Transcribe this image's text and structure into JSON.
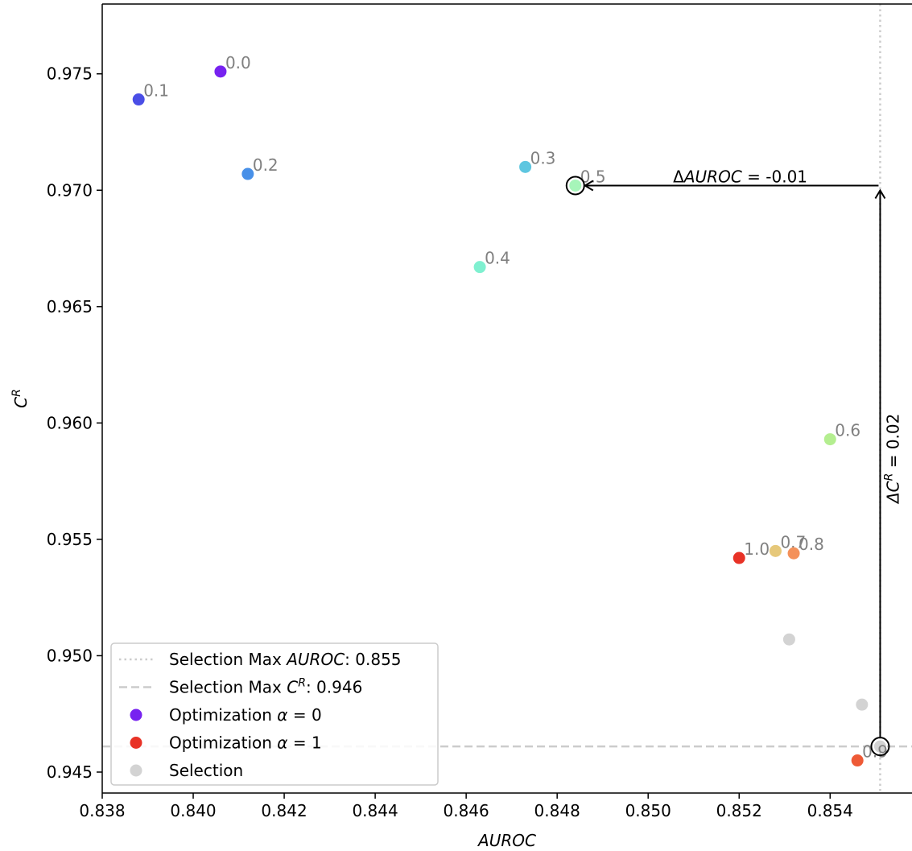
{
  "chart_data": {
    "type": "scatter",
    "xlabel": "AUROC",
    "ylabel_base": "C",
    "ylabel_sup": "R",
    "xlim": [
      0.838,
      0.8558
    ],
    "ylim": [
      0.9441,
      0.978
    ],
    "grid": false,
    "legend_position": "bottom-left",
    "x_ticks": [
      "0.838",
      "0.840",
      "0.842",
      "0.844",
      "0.846",
      "0.848",
      "0.850",
      "0.852",
      "0.854"
    ],
    "y_ticks": [
      "0.945",
      "0.950",
      "0.955",
      "0.960",
      "0.965",
      "0.970",
      "0.975"
    ],
    "optimization_points": [
      {
        "label": "0.0",
        "x": 0.8406,
        "y": 0.9751,
        "color": "#7722f0"
      },
      {
        "label": "0.1",
        "x": 0.8388,
        "y": 0.9739,
        "color": "#4a4ee6"
      },
      {
        "label": "0.2",
        "x": 0.8412,
        "y": 0.9707,
        "color": "#4890e8"
      },
      {
        "label": "0.3",
        "x": 0.8473,
        "y": 0.971,
        "color": "#5ec6e0"
      },
      {
        "label": "0.4",
        "x": 0.8463,
        "y": 0.9667,
        "color": "#7ff0d0"
      },
      {
        "label": "0.5",
        "x": 0.8484,
        "y": 0.9702,
        "color": "#a6f5b9"
      },
      {
        "label": "0.6",
        "x": 0.854,
        "y": 0.9593,
        "color": "#b4ee90"
      },
      {
        "label": "0.7",
        "x": 0.8528,
        "y": 0.9545,
        "color": "#e6c87a"
      },
      {
        "label": "0.8",
        "x": 0.8532,
        "y": 0.9544,
        "color": "#f4915a"
      },
      {
        "label": "0.9",
        "x": 0.8546,
        "y": 0.9455,
        "color": "#ee5a36"
      },
      {
        "label": "1.0",
        "x": 0.852,
        "y": 0.9542,
        "color": "#e83226"
      }
    ],
    "selection_points": [
      {
        "x": 0.8531,
        "y": 0.9507
      },
      {
        "x": 0.8547,
        "y": 0.9479
      },
      {
        "x": 0.8551,
        "y": 0.9461
      }
    ],
    "selection_max_auroc": 0.8551,
    "selection_max_cr": 0.9461,
    "highlighted": [
      {
        "x": 0.8484,
        "y": 0.9702
      },
      {
        "x": 0.8551,
        "y": 0.9461
      }
    ],
    "annotations": {
      "delta_auroc": {
        "prefix": "Δ",
        "var": "AUROC",
        "suffix": " = -0.01"
      },
      "delta_cr": {
        "prefix": "ΔC",
        "sup": "R",
        "suffix": " = 0.02"
      }
    },
    "legend": [
      {
        "marker": "dotted-line",
        "prefix": "Selection Max ",
        "var": "AUROC",
        "sup": "",
        "suffix": ": 0.855"
      },
      {
        "marker": "dashed-line",
        "prefix": "Selection Max ",
        "var": "C",
        "sup": "R",
        "suffix": ": 0.946"
      },
      {
        "marker": "dot",
        "color": "#7722f0",
        "prefix": "Optimization ",
        "var": "α",
        "sup": "",
        "suffix": " = 0"
      },
      {
        "marker": "dot",
        "color": "#e83226",
        "prefix": "Optimization ",
        "var": "α",
        "sup": "",
        "suffix": " = 1"
      },
      {
        "marker": "dot",
        "color": "#d3d3d3",
        "prefix": "Selection",
        "var": "",
        "sup": "",
        "suffix": ""
      }
    ],
    "colors": {
      "axis": "#000000",
      "point_label": "#808080",
      "selection_line": "#cccccc",
      "selection_point": "#d3d3d3"
    }
  }
}
